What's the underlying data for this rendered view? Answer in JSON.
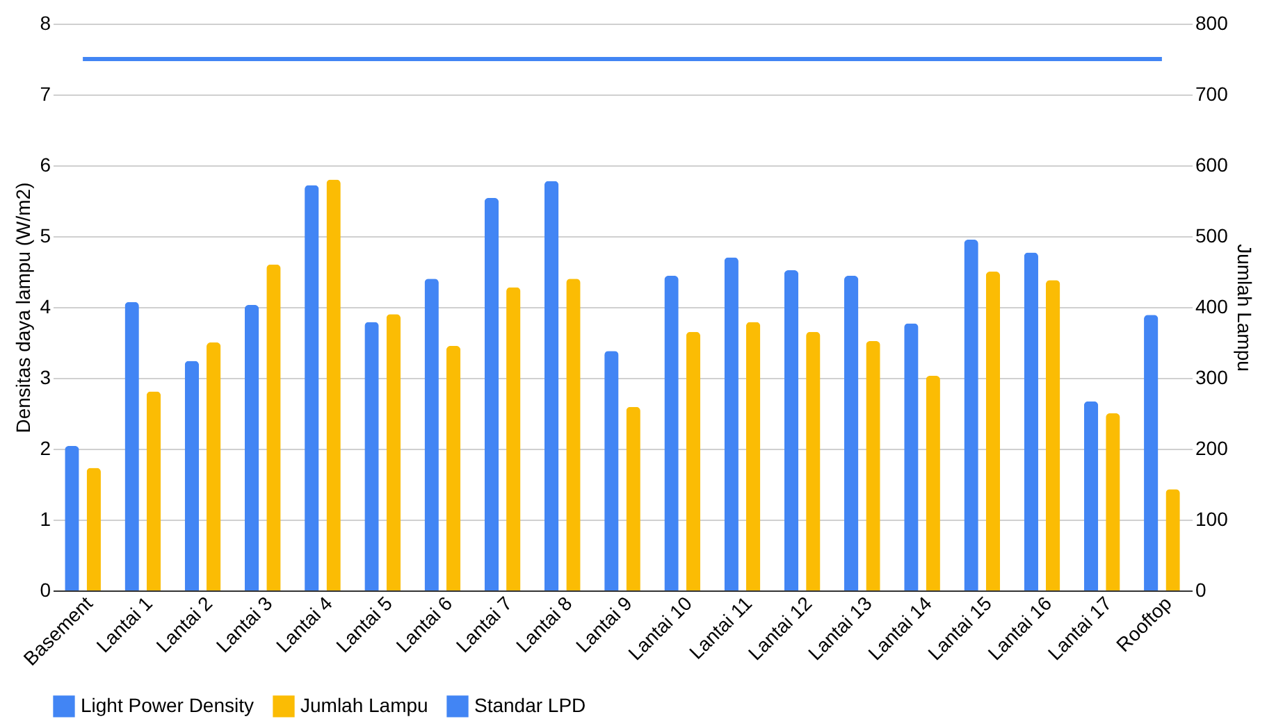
{
  "chart_data": {
    "type": "bar",
    "ylabel": "Densitas daya lampu (W/m2)",
    "y2label": "Jumlah Lampu",
    "categories": [
      "Basement",
      "Lantai 1",
      "Lantai 2",
      "Lantai 3",
      "Lantai 4",
      "Lantai 5",
      "Lantai 6",
      "Lantai 7",
      "Lantai 8",
      "Lantai 9",
      "Lantai 10",
      "Lantai 11",
      "Lantai 12",
      "Lantai 13",
      "Lantai 14",
      "Lantai 15",
      "Lantai 16",
      "Lantai 17",
      "Rooftop"
    ],
    "series": [
      {
        "name": "Light Power Density",
        "color": "#4285f4",
        "values": [
          2.04,
          4.07,
          3.24,
          4.03,
          5.72,
          3.79,
          4.4,
          5.54,
          5.78,
          3.38,
          4.44,
          4.7,
          4.52,
          4.44,
          3.77,
          4.95,
          4.77,
          2.67,
          3.89
        ]
      },
      {
        "name": "Jumlah Lampu",
        "color": "#fbbc04",
        "axis": "y2",
        "values": [
          173,
          281,
          350,
          460,
          580,
          390,
          345,
          428,
          440,
          259,
          365,
          379,
          365,
          352,
          303,
          450,
          438,
          250,
          143
        ]
      },
      {
        "name": "Standar LPD",
        "color": "#4285f4",
        "type": "line",
        "values": [
          7.5,
          7.5,
          7.5,
          7.5,
          7.5,
          7.5,
          7.5,
          7.5,
          7.5,
          7.5,
          7.5,
          7.5,
          7.5,
          7.5,
          7.5,
          7.5,
          7.5,
          7.5,
          7.5
        ]
      }
    ],
    "ylim": [
      0,
      8
    ],
    "yticks": [
      0,
      1,
      2,
      3,
      4,
      5,
      6,
      7,
      8
    ],
    "y2lim": [
      0,
      800
    ],
    "y2ticks": [
      0,
      100,
      200,
      300,
      400,
      500,
      600,
      700,
      800
    ],
    "grid": "y",
    "legend": "bottom"
  }
}
